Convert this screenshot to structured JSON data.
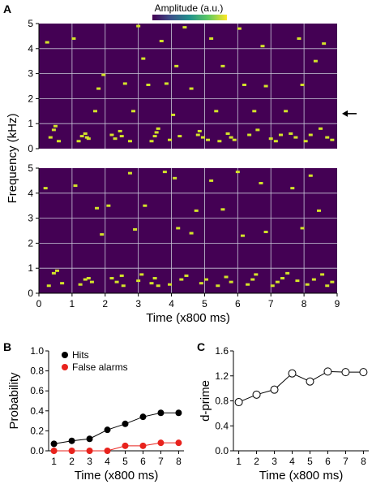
{
  "panel_labels": {
    "a": "A",
    "b": "B",
    "c": "C"
  },
  "colorbar_label": "Amplitude (a.u.)",
  "colors": {
    "background": "#440154",
    "tone": "#d4e32a",
    "grid": "#c8c8d8",
    "hits": "#000000",
    "false_alarms": "#e8231d",
    "dprime_fill": "#ffffff"
  },
  "chart_data": [
    {
      "type": "heatmap",
      "panel": "A-top",
      "ylabel": "Frequency (kHz)",
      "y_ticks": [
        "0",
        "1",
        "2",
        "3",
        "4",
        "5"
      ],
      "ylim": [
        0,
        5
      ],
      "xlim": [
        0,
        9
      ],
      "grid": true,
      "annotation": "arrow at 1.4 kHz",
      "arrow_frequency": 1.4,
      "tones": [
        [
          0.25,
          4.25
        ],
        [
          0.35,
          0.45
        ],
        [
          0.45,
          0.75
        ],
        [
          0.5,
          0.9
        ],
        [
          0.6,
          0.3
        ],
        [
          1.05,
          4.4
        ],
        [
          1.2,
          0.3
        ],
        [
          1.3,
          0.5
        ],
        [
          1.4,
          0.6
        ],
        [
          1.45,
          0.45
        ],
        [
          1.5,
          0.4
        ],
        [
          1.7,
          1.5
        ],
        [
          1.8,
          2.4
        ],
        [
          1.95,
          2.95
        ],
        [
          2.2,
          0.55
        ],
        [
          2.3,
          0.4
        ],
        [
          2.45,
          0.7
        ],
        [
          2.5,
          0.5
        ],
        [
          2.6,
          2.6
        ],
        [
          2.75,
          0.3
        ],
        [
          2.85,
          1.5
        ],
        [
          3.0,
          4.9
        ],
        [
          3.15,
          3.6
        ],
        [
          3.3,
          2.55
        ],
        [
          3.4,
          0.3
        ],
        [
          3.5,
          0.5
        ],
        [
          3.55,
          0.65
        ],
        [
          3.6,
          0.8
        ],
        [
          3.7,
          4.3
        ],
        [
          3.85,
          2.6
        ],
        [
          3.95,
          0.35
        ],
        [
          4.05,
          1.35
        ],
        [
          4.15,
          3.3
        ],
        [
          4.25,
          0.5
        ],
        [
          4.4,
          4.85
        ],
        [
          4.6,
          2.4
        ],
        [
          4.8,
          0.55
        ],
        [
          4.85,
          0.7
        ],
        [
          4.95,
          0.45
        ],
        [
          5.1,
          0.35
        ],
        [
          5.2,
          4.4
        ],
        [
          5.35,
          1.5
        ],
        [
          5.45,
          0.3
        ],
        [
          5.55,
          3.3
        ],
        [
          5.7,
          0.6
        ],
        [
          5.8,
          0.45
        ],
        [
          5.9,
          0.35
        ],
        [
          6.05,
          4.8
        ],
        [
          6.2,
          2.55
        ],
        [
          6.35,
          0.55
        ],
        [
          6.5,
          1.5
        ],
        [
          6.6,
          0.75
        ],
        [
          6.75,
          4.1
        ],
        [
          6.85,
          2.5
        ],
        [
          7.0,
          0.4
        ],
        [
          7.15,
          0.3
        ],
        [
          7.3,
          0.55
        ],
        [
          7.45,
          1.5
        ],
        [
          7.6,
          0.6
        ],
        [
          7.75,
          0.45
        ],
        [
          7.85,
          4.4
        ],
        [
          7.95,
          2.55
        ],
        [
          8.05,
          0.3
        ],
        [
          8.2,
          0.55
        ],
        [
          8.35,
          3.5
        ],
        [
          8.5,
          0.8
        ],
        [
          8.6,
          4.2
        ],
        [
          8.7,
          0.45
        ],
        [
          8.85,
          0.35
        ]
      ]
    },
    {
      "type": "heatmap",
      "panel": "A-bottom",
      "xlabel": "Time (x800 ms)",
      "x_ticks": [
        "0",
        "1",
        "2",
        "3",
        "4",
        "5",
        "6",
        "7",
        "8",
        "9"
      ],
      "y_ticks": [
        "0",
        "1",
        "2",
        "3",
        "4",
        "5"
      ],
      "ylim": [
        0,
        5
      ],
      "xlim": [
        0,
        9
      ],
      "grid": true,
      "tones": [
        [
          0.2,
          4.2
        ],
        [
          0.3,
          0.3
        ],
        [
          0.45,
          0.8
        ],
        [
          0.55,
          0.9
        ],
        [
          0.7,
          0.4
        ],
        [
          1.1,
          4.3
        ],
        [
          1.25,
          0.35
        ],
        [
          1.4,
          0.55
        ],
        [
          1.5,
          0.6
        ],
        [
          1.6,
          0.45
        ],
        [
          1.75,
          3.4
        ],
        [
          1.9,
          2.35
        ],
        [
          2.1,
          3.5
        ],
        [
          2.2,
          0.6
        ],
        [
          2.35,
          0.45
        ],
        [
          2.5,
          0.7
        ],
        [
          2.55,
          0.3
        ],
        [
          2.75,
          4.8
        ],
        [
          2.9,
          2.55
        ],
        [
          3.0,
          0.5
        ],
        [
          3.1,
          0.75
        ],
        [
          3.2,
          3.5
        ],
        [
          3.4,
          0.4
        ],
        [
          3.5,
          0.6
        ],
        [
          3.6,
          0.3
        ],
        [
          3.8,
          4.85
        ],
        [
          3.95,
          0.35
        ],
        [
          4.1,
          4.6
        ],
        [
          4.2,
          2.6
        ],
        [
          4.3,
          0.55
        ],
        [
          4.45,
          0.7
        ],
        [
          4.6,
          2.4
        ],
        [
          4.75,
          3.3
        ],
        [
          4.9,
          0.4
        ],
        [
          5.05,
          0.55
        ],
        [
          5.2,
          4.5
        ],
        [
          5.4,
          0.3
        ],
        [
          5.55,
          3.35
        ],
        [
          5.65,
          0.65
        ],
        [
          5.8,
          0.45
        ],
        [
          6.0,
          4.85
        ],
        [
          6.15,
          2.3
        ],
        [
          6.3,
          0.35
        ],
        [
          6.45,
          0.55
        ],
        [
          6.55,
          0.75
        ],
        [
          6.7,
          4.4
        ],
        [
          6.85,
          2.45
        ],
        [
          7.05,
          0.3
        ],
        [
          7.2,
          0.45
        ],
        [
          7.35,
          0.6
        ],
        [
          7.5,
          0.8
        ],
        [
          7.65,
          4.2
        ],
        [
          7.8,
          0.5
        ],
        [
          7.95,
          2.6
        ],
        [
          8.1,
          0.35
        ],
        [
          8.2,
          4.7
        ],
        [
          8.3,
          0.55
        ],
        [
          8.45,
          3.3
        ],
        [
          8.55,
          0.75
        ],
        [
          8.7,
          0.3
        ],
        [
          8.85,
          0.45
        ]
      ]
    },
    {
      "type": "line",
      "panel": "B",
      "xlabel": "Time (x800 ms)",
      "ylabel": "Probability",
      "x": [
        1,
        2,
        3,
        4,
        5,
        6,
        7,
        8
      ],
      "x_ticks": [
        "1",
        "2",
        "3",
        "4",
        "5",
        "6",
        "7",
        "8"
      ],
      "y_ticks": [
        "0.0",
        "0.2",
        "0.4",
        "0.6",
        "0.8",
        "1.0"
      ],
      "ylim": [
        0,
        1
      ],
      "legend_position": "top-left",
      "series": [
        {
          "name": "Hits",
          "color": "#000000",
          "values": [
            0.07,
            0.1,
            0.12,
            0.21,
            0.27,
            0.34,
            0.38,
            0.38
          ]
        },
        {
          "name": "False alarms",
          "color": "#e8231d",
          "values": [
            0.0,
            0.0,
            0.0,
            0.0,
            0.05,
            0.05,
            0.08,
            0.08
          ]
        }
      ]
    },
    {
      "type": "line",
      "panel": "C",
      "xlabel": "Time (x800 ms)",
      "ylabel": "d-prime",
      "x": [
        1,
        2,
        3,
        4,
        5,
        6,
        7,
        8
      ],
      "x_ticks": [
        "1",
        "2",
        "3",
        "4",
        "5",
        "6",
        "7",
        "8"
      ],
      "y_ticks": [
        "0.0",
        "0.4",
        "0.8",
        "1.2",
        "1.6"
      ],
      "ylim": [
        0,
        1.6
      ],
      "series": [
        {
          "values": [
            0.78,
            0.9,
            0.98,
            1.24,
            1.11,
            1.27,
            1.26,
            1.26
          ]
        }
      ]
    }
  ]
}
